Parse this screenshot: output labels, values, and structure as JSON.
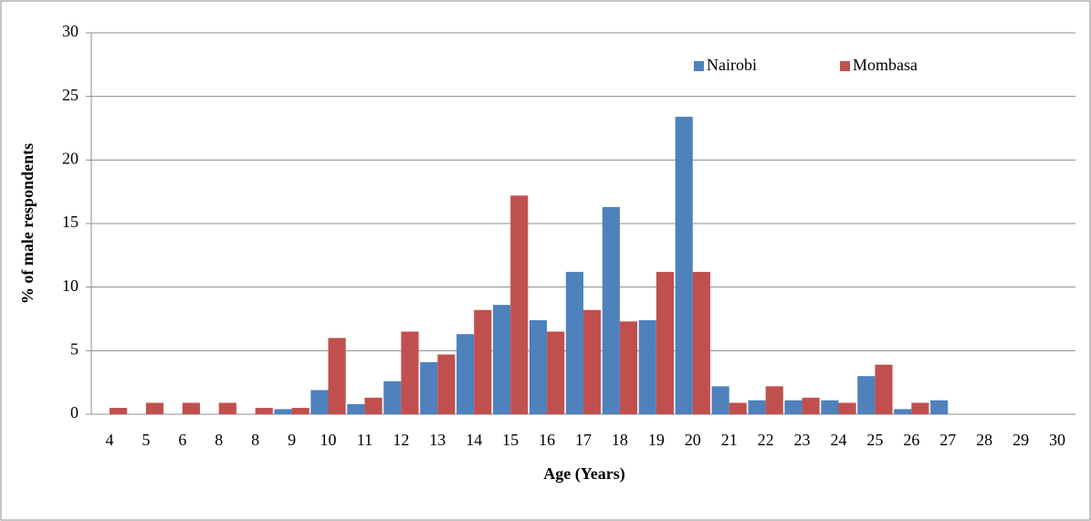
{
  "chart_data": {
    "type": "bar",
    "x_label": "Age (Years)",
    "y_label": "% of male respondents",
    "categories": [
      "4",
      "5",
      "6",
      "8",
      "8",
      "9",
      "10",
      "11",
      "12",
      "13",
      "14",
      "15",
      "16",
      "17",
      "18",
      "19",
      "20",
      "21",
      "22",
      "23",
      "24",
      "25",
      "26",
      "27",
      "28",
      "29",
      "30"
    ],
    "series": [
      {
        "name": "Nairobi",
        "color": "#4f81bd",
        "values": [
          0,
          0,
          0,
          0,
          0,
          0.4,
          1.9,
          0.8,
          2.6,
          4.1,
          6.3,
          8.6,
          7.4,
          11.2,
          16.3,
          7.4,
          23.4,
          2.2,
          1.1,
          1.1,
          1.1,
          3.0,
          0.4,
          1.1,
          0,
          0,
          0
        ]
      },
      {
        "name": "Mombasa",
        "color": "#c0504d",
        "values": [
          0.5,
          0.9,
          0.9,
          0.9,
          0.5,
          0.5,
          6.0,
          1.3,
          6.5,
          4.7,
          8.2,
          17.2,
          6.5,
          8.2,
          7.3,
          11.2,
          11.2,
          0.9,
          2.2,
          1.3,
          0.9,
          3.9,
          0.9,
          0,
          0,
          0,
          0
        ]
      }
    ],
    "ylim": [
      0,
      30
    ],
    "yticks": [
      0,
      5,
      10,
      15,
      20,
      25,
      30
    ],
    "grid": true,
    "legend": "top"
  }
}
